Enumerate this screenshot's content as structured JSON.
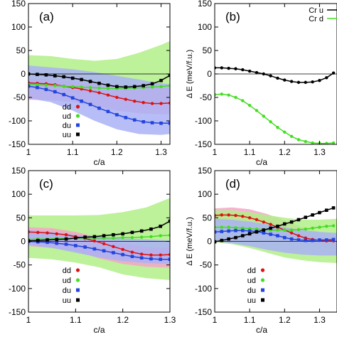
{
  "chart_data": [
    {
      "id": "a",
      "type": "line",
      "panel_label": "(a)",
      "xlabel": "c/a",
      "ylabel": "",
      "xlim": [
        1.0,
        1.32
      ],
      "ylim": [
        -150,
        150
      ],
      "x_ticks": [
        "1",
        "1.1",
        "1.2",
        "1.3"
      ],
      "x_tick_values": [
        1.0,
        1.1,
        1.2,
        1.3
      ],
      "y_ticks": [
        "150",
        "100",
        "50",
        "0",
        "-50",
        "-100",
        "-150"
      ],
      "y_tick_values": [
        150,
        100,
        50,
        0,
        -50,
        -100,
        -150
      ],
      "legend_position": "bottom-left",
      "bands": [
        {
          "color": "#b2ee88",
          "x": [
            1.0,
            1.05,
            1.1,
            1.15,
            1.2,
            1.25,
            1.3,
            1.32
          ],
          "upper": [
            40,
            38,
            32,
            28,
            32,
            45,
            62,
            70
          ],
          "lower": [
            -32,
            -36,
            -40,
            -44,
            -52,
            -58,
            -62,
            -64
          ]
        },
        {
          "color": "#f4a6c8",
          "x": [
            1.0,
            1.05,
            1.1,
            1.15,
            1.2,
            1.25,
            1.3,
            1.32
          ],
          "upper": [
            -10,
            -12,
            -16,
            -22,
            -28,
            -30,
            -30,
            -30
          ],
          "lower": [
            -55,
            -56,
            -60,
            -68,
            -78,
            -84,
            -86,
            -86
          ]
        },
        {
          "color": "#aab2f4",
          "x": [
            1.0,
            1.05,
            1.1,
            1.15,
            1.2,
            1.25,
            1.3,
            1.32
          ],
          "upper": [
            18,
            14,
            10,
            4,
            -4,
            -12,
            -20,
            -22
          ],
          "lower": [
            -52,
            -60,
            -78,
            -100,
            -118,
            -128,
            -130,
            -128
          ]
        }
      ],
      "x": [
        1.0,
        1.02,
        1.04,
        1.06,
        1.08,
        1.1,
        1.12,
        1.14,
        1.16,
        1.18,
        1.2,
        1.22,
        1.24,
        1.26,
        1.28,
        1.3,
        1.32
      ],
      "series": [
        {
          "name": "dd",
          "color": "#dd1111",
          "marker": "circle",
          "values": [
            -19,
            -20,
            -21,
            -23,
            -26,
            -29,
            -32,
            -36,
            -40,
            -45,
            -50,
            -54,
            -58,
            -61,
            -63,
            -63,
            -62
          ]
        },
        {
          "name": "ud",
          "color": "#44dd22",
          "marker": "circle",
          "values": [
            -22,
            -23,
            -24,
            -25,
            -26,
            -27,
            -28,
            -29,
            -30,
            -31,
            -31,
            -31,
            -30,
            -29,
            -28,
            -27,
            -25
          ]
        },
        {
          "name": "du",
          "color": "#2244dd",
          "marker": "square",
          "values": [
            -26,
            -29,
            -33,
            -38,
            -44,
            -51,
            -58,
            -65,
            -73,
            -80,
            -87,
            -93,
            -98,
            -102,
            -104,
            -105,
            -105
          ]
        },
        {
          "name": "uu",
          "color": "#000000",
          "marker": "square",
          "values": [
            0,
            -1,
            -2,
            -4,
            -6,
            -9,
            -12,
            -16,
            -20,
            -24,
            -27,
            -28,
            -27,
            -25,
            -21,
            -14,
            -3
          ]
        }
      ]
    },
    {
      "id": "b",
      "type": "line",
      "panel_label": "(b)",
      "xlabel": "c/a",
      "ylabel": "Δ E (meV/f.u.)",
      "xlim": [
        1.0,
        1.35
      ],
      "ylim": [
        -150,
        150
      ],
      "x_ticks": [
        "1",
        "1.1",
        "1.2",
        "1.3"
      ],
      "x_tick_values": [
        1.0,
        1.1,
        1.2,
        1.3
      ],
      "y_ticks": [
        "150",
        "100",
        "50",
        "0",
        "-50",
        "-100",
        "-150"
      ],
      "y_tick_values": [
        150,
        100,
        50,
        0,
        -50,
        -100,
        -150
      ],
      "legend_position": "top-right",
      "x": [
        1.0,
        1.02,
        1.04,
        1.06,
        1.08,
        1.1,
        1.12,
        1.14,
        1.16,
        1.18,
        1.2,
        1.22,
        1.24,
        1.26,
        1.28,
        1.3,
        1.32,
        1.34
      ],
      "series": [
        {
          "name": "Cr u",
          "color": "#000000",
          "marker": "circle",
          "values": [
            13,
            13,
            12,
            11,
            9,
            6,
            3,
            0,
            -4,
            -9,
            -13,
            -16,
            -18,
            -18,
            -17,
            -14,
            -8,
            2
          ]
        },
        {
          "name": "Cr d",
          "color": "#44dd22",
          "marker": "circle",
          "values": [
            -44,
            -43,
            -45,
            -50,
            -57,
            -67,
            -78,
            -90,
            -102,
            -114,
            -124,
            -133,
            -140,
            -144,
            -147,
            -148,
            -148,
            -147
          ]
        }
      ]
    },
    {
      "id": "c",
      "type": "line",
      "panel_label": "(c)",
      "xlabel": "c/a",
      "ylabel": "",
      "xlim": [
        1.0,
        1.3
      ],
      "ylim": [
        -150,
        150
      ],
      "x_ticks": [
        "1",
        "1.1",
        "1.2",
        "1.3"
      ],
      "x_tick_values": [
        1.0,
        1.1,
        1.2,
        1.3
      ],
      "y_ticks": [
        "150",
        "100",
        "50",
        "0",
        "-50",
        "-100",
        "-150"
      ],
      "y_tick_values": [
        150,
        100,
        50,
        0,
        -50,
        -100,
        -150
      ],
      "legend_position": "bottom-left",
      "bands": [
        {
          "color": "#b2ee88",
          "x": [
            1.0,
            1.05,
            1.1,
            1.15,
            1.2,
            1.25,
            1.3
          ],
          "upper": [
            55,
            55,
            55,
            56,
            62,
            72,
            92
          ],
          "lower": [
            -35,
            -38,
            -45,
            -55,
            -70,
            -78,
            -82
          ]
        },
        {
          "color": "#f4a6c8",
          "x": [
            1.0,
            1.05,
            1.1,
            1.15,
            1.2,
            1.25,
            1.3
          ],
          "upper": [
            30,
            28,
            20,
            8,
            -5,
            -12,
            -14
          ],
          "lower": [
            -10,
            -14,
            -20,
            -36,
            -48,
            -54,
            -56
          ]
        },
        {
          "color": "#aab2f4",
          "x": [
            1.0,
            1.05,
            1.1,
            1.15,
            1.2,
            1.25,
            1.3
          ],
          "upper": [
            24,
            20,
            14,
            10,
            6,
            4,
            2
          ],
          "lower": [
            -8,
            -14,
            -24,
            -34,
            -42,
            -46,
            -48
          ]
        }
      ],
      "x": [
        1.0,
        1.02,
        1.04,
        1.06,
        1.08,
        1.1,
        1.12,
        1.14,
        1.16,
        1.18,
        1.2,
        1.22,
        1.24,
        1.26,
        1.28,
        1.3
      ],
      "series": [
        {
          "name": "dd",
          "color": "#dd1111",
          "marker": "circle",
          "values": [
            20,
            19,
            18,
            16,
            14,
            10,
            6,
            1,
            -5,
            -11,
            -17,
            -23,
            -27,
            -29,
            -29,
            -28
          ]
        },
        {
          "name": "ud",
          "color": "#44dd22",
          "marker": "circle",
          "values": [
            4,
            5,
            5,
            6,
            6,
            7,
            7,
            7,
            7,
            7,
            8,
            8,
            9,
            10,
            12,
            13
          ]
        },
        {
          "name": "du",
          "color": "#2244dd",
          "marker": "square",
          "values": [
            0,
            -1,
            -2,
            -4,
            -6,
            -9,
            -12,
            -16,
            -20,
            -24,
            -28,
            -32,
            -35,
            -37,
            -38,
            -38
          ]
        },
        {
          "name": "uu",
          "color": "#000000",
          "marker": "square",
          "values": [
            1,
            2,
            3,
            4,
            5,
            7,
            9,
            10,
            12,
            14,
            16,
            19,
            22,
            26,
            32,
            43
          ]
        }
      ]
    },
    {
      "id": "d",
      "type": "line",
      "panel_label": "(d)",
      "xlabel": "c/a",
      "ylabel": "Δ E (meV/f.u.)",
      "xlim": [
        1.0,
        1.35
      ],
      "ylim": [
        -150,
        150
      ],
      "x_ticks": [
        "1",
        "1.1",
        "1.2",
        "1.3"
      ],
      "x_tick_values": [
        1.0,
        1.1,
        1.2,
        1.3
      ],
      "y_ticks": [
        "150",
        "100",
        "50",
        "0",
        "-50",
        "-100",
        "-150"
      ],
      "y_tick_values": [
        150,
        100,
        50,
        0,
        -50,
        -100,
        -150
      ],
      "legend_position": "bottom-left",
      "bands": [
        {
          "color": "#f4a6c8",
          "x": [
            1.0,
            1.05,
            1.1,
            1.15,
            1.2,
            1.25,
            1.3,
            1.35
          ],
          "upper": [
            70,
            72,
            68,
            58,
            44,
            30,
            20,
            12
          ],
          "lower": [
            40,
            36,
            28,
            16,
            4,
            -6,
            -12,
            -16
          ]
        },
        {
          "color": "#b2ee88",
          "x": [
            1.0,
            1.05,
            1.1,
            1.15,
            1.2,
            1.25,
            1.3,
            1.35
          ],
          "upper": [
            66,
            66,
            62,
            56,
            50,
            46,
            46,
            48
          ],
          "lower": [
            -2,
            -6,
            -14,
            -24,
            -34,
            -40,
            -44,
            -46
          ]
        },
        {
          "color": "#aab2f4",
          "x": [
            1.0,
            1.05,
            1.1,
            1.15,
            1.2,
            1.25,
            1.3,
            1.35
          ],
          "upper": [
            48,
            46,
            42,
            36,
            30,
            24,
            20,
            18
          ],
          "lower": [
            0,
            -4,
            -10,
            -18,
            -24,
            -28,
            -30,
            -30
          ]
        }
      ],
      "x": [
        1.0,
        1.02,
        1.04,
        1.06,
        1.08,
        1.1,
        1.12,
        1.14,
        1.16,
        1.18,
        1.2,
        1.22,
        1.24,
        1.26,
        1.28,
        1.3,
        1.32,
        1.34
      ],
      "series": [
        {
          "name": "dd",
          "color": "#dd1111",
          "marker": "circle",
          "values": [
            55,
            56,
            56,
            55,
            53,
            50,
            46,
            41,
            36,
            30,
            24,
            18,
            12,
            7,
            4,
            2,
            1,
            1
          ]
        },
        {
          "name": "ud",
          "color": "#44dd22",
          "marker": "circle",
          "values": [
            30,
            30,
            30,
            29,
            28,
            27,
            26,
            25,
            24,
            24,
            24,
            24,
            25,
            26,
            28,
            30,
            32,
            33
          ]
        },
        {
          "name": "du",
          "color": "#2244dd",
          "marker": "square",
          "values": [
            20,
            21,
            22,
            23,
            23,
            22,
            21,
            18,
            15,
            12,
            8,
            5,
            3,
            2,
            2,
            3,
            3,
            4
          ]
        },
        {
          "name": "uu",
          "color": "#000000",
          "marker": "square",
          "values": [
            -1,
            2,
            5,
            8,
            12,
            16,
            20,
            24,
            28,
            32,
            37,
            41,
            46,
            51,
            56,
            61,
            66,
            71
          ]
        }
      ]
    }
  ]
}
